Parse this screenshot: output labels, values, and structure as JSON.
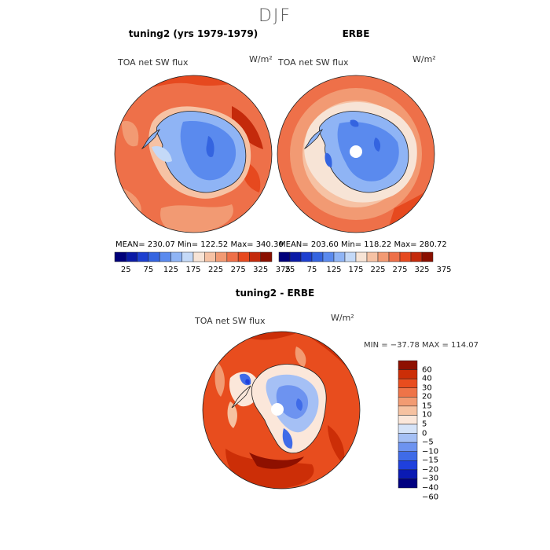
{
  "figure": {
    "suptitle": "DJF",
    "units": "W/m²"
  },
  "panels": {
    "left": {
      "title": "tuning2 (yrs 1979-1979)",
      "variable": "TOA net SW flux",
      "units": "W/m²",
      "stats": "MEAN= 230.07   Min= 122.52   Max= 340.30"
    },
    "right": {
      "title": "ERBE",
      "variable": "TOA net SW flux",
      "units": "W/m²",
      "stats": "MEAN= 203.60   Min= 118.22   Max= 280.72"
    },
    "bottom": {
      "title": "tuning2 - ERBE",
      "variable": "TOA net SW flux",
      "units": "W/m²",
      "stats": "MIN = −37.78  MAX = 114.07"
    }
  },
  "colors": {
    "abs_palette": [
      "#00007a",
      "#0a1aa6",
      "#1d3fd0",
      "#3464e0",
      "#5a8aee",
      "#8fb4f5",
      "#c4d9f7",
      "#f7e4d6",
      "#f6c2a4",
      "#f29a73",
      "#ee7049",
      "#e6491f",
      "#c42a0b",
      "#8a0f00"
    ],
    "diff_palette": [
      "#000080",
      "#0a1ab3",
      "#1f40dd",
      "#3f6be8",
      "#6d93f0",
      "#a5c0f5",
      "#d5e3f8",
      "#fbe7da",
      "#f6c2a1",
      "#f29b72",
      "#ee7448",
      "#e84d1e",
      "#cc2e07",
      "#8e1000"
    ],
    "coast": "#222222",
    "land_hole": "#ffffff"
  },
  "chart_data": [
    {
      "type": "heatmap",
      "name": "tuning2",
      "projection": "south-polar-stereographic",
      "title": "tuning2 (yrs 1979-1979)",
      "variable": "TOA net SW flux",
      "units": "W/m²",
      "mean": 230.07,
      "min": 122.52,
      "max": 340.3,
      "colorbar_ticks": [
        "25",
        "75",
        "125",
        "175",
        "225",
        "275",
        "325",
        "375"
      ],
      "colorbar_levels": [
        25,
        50,
        75,
        100,
        125,
        150,
        175,
        200,
        225,
        250,
        275,
        300,
        325,
        350,
        375
      ]
    },
    {
      "type": "heatmap",
      "name": "ERBE",
      "projection": "south-polar-stereographic",
      "title": "ERBE",
      "variable": "TOA net SW flux",
      "units": "W/m²",
      "mean": 203.6,
      "min": 118.22,
      "max": 280.72,
      "colorbar_ticks": [
        "25",
        "75",
        "125",
        "175",
        "225",
        "275",
        "325",
        "375"
      ],
      "colorbar_levels": [
        25,
        50,
        75,
        100,
        125,
        150,
        175,
        200,
        225,
        250,
        275,
        300,
        325,
        350,
        375
      ]
    },
    {
      "type": "heatmap",
      "name": "tuning2 - ERBE",
      "projection": "south-polar-stereographic",
      "title": "tuning2 - ERBE",
      "variable": "TOA net SW flux",
      "units": "W/m²",
      "min": -37.78,
      "max": 114.07,
      "colorbar_ticks": [
        "60",
        "40",
        "30",
        "20",
        "15",
        "10",
        "5",
        "0",
        "−5",
        "−10",
        "−15",
        "−20",
        "−30",
        "−40",
        "−60"
      ]
    }
  ]
}
